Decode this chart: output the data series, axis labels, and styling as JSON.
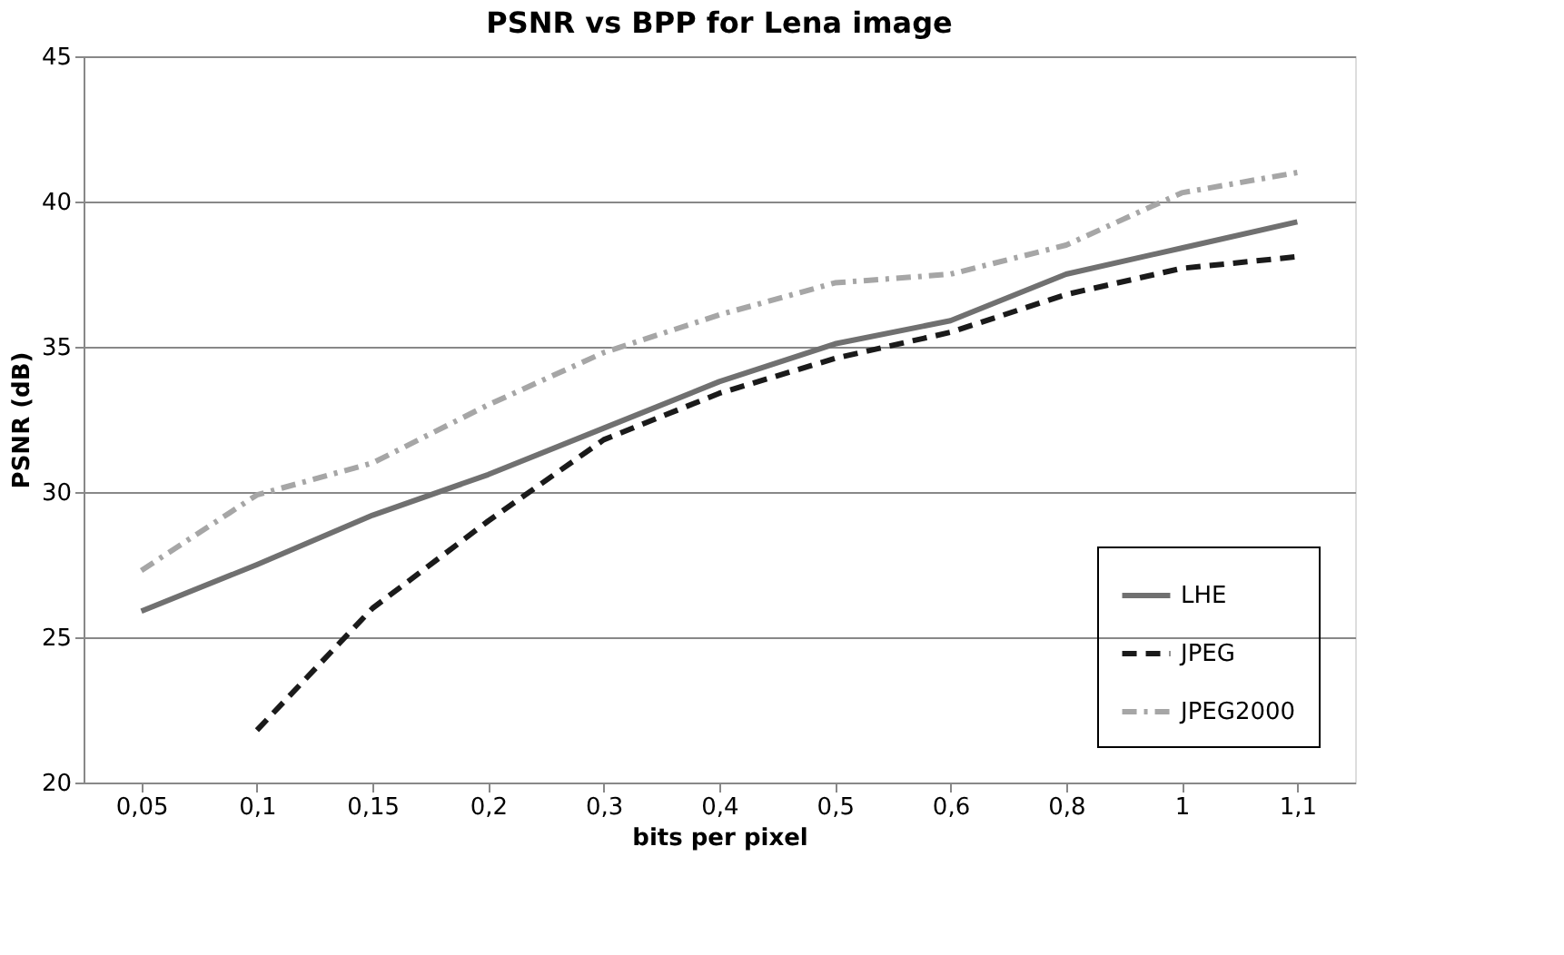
{
  "chart_data": {
    "type": "line",
    "title": "PSNR vs BPP for Lena image",
    "xlabel": "bits per pixel",
    "ylabel": "PSNR (dB)",
    "categories": [
      "0,05",
      "0,1",
      "0,15",
      "0,2",
      "0,3",
      "0,4",
      "0,5",
      "0,6",
      "0,8",
      "1",
      "1,1"
    ],
    "series": [
      {
        "name": "LHE",
        "color": "#707070",
        "line_style": "solid",
        "values": [
          25.9,
          27.5,
          29.2,
          30.6,
          32.2,
          33.8,
          35.1,
          35.9,
          37.5,
          38.4,
          39.3
        ]
      },
      {
        "name": "JPEG",
        "color": "#1a1a1a",
        "line_style": "dashed",
        "values": [
          null,
          21.8,
          26.0,
          29.0,
          31.8,
          33.4,
          34.6,
          35.5,
          36.8,
          37.7,
          38.1
        ]
      },
      {
        "name": "JPEG2000",
        "color": "#a6a6a6",
        "line_style": "dashdot",
        "values": [
          27.3,
          29.9,
          31.0,
          33.0,
          34.8,
          36.1,
          37.2,
          37.5,
          38.5,
          40.3,
          41.0
        ]
      }
    ],
    "ylim": [
      20,
      45
    ],
    "yticks": [
      20,
      25,
      30,
      35,
      40,
      45
    ],
    "grid": "y",
    "legend": "bottom right",
    "marker": "none"
  }
}
